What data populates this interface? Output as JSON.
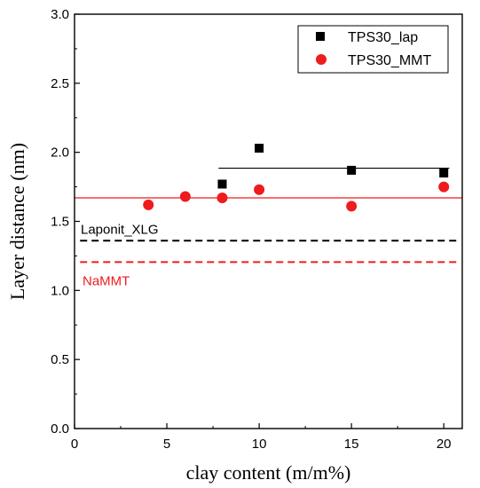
{
  "chart_data": {
    "type": "scatter",
    "xlabel": "clay content (m/m%)",
    "ylabel": "Layer distance (nm)",
    "xlim": [
      0,
      21
    ],
    "ylim": [
      0,
      3.0
    ],
    "xticks": [
      "0",
      "5",
      "10",
      "15",
      "20"
    ],
    "yticks": [
      "0.0",
      "0.5",
      "1.0",
      "1.5",
      "2.0",
      "2.5",
      "3.0"
    ],
    "xtick_values": [
      0,
      5,
      10,
      15,
      20
    ],
    "ytick_values": [
      0,
      0.5,
      1.0,
      1.5,
      2.0,
      2.5,
      3.0
    ],
    "legend_position": "top-right",
    "series": [
      {
        "name": "TPS30_lap",
        "marker": "square",
        "color": "#000000",
        "points": [
          {
            "x": 8,
            "y": 1.77
          },
          {
            "x": 10,
            "y": 2.03
          },
          {
            "x": 15,
            "y": 1.87
          },
          {
            "x": 20,
            "y": 1.85
          }
        ],
        "fit_line": {
          "x_start": 7.8,
          "x_end": 20.3,
          "y": 1.885
        }
      },
      {
        "name": "TPS30_MMT",
        "marker": "circle",
        "color": "#ee1c1c",
        "points": [
          {
            "x": 4,
            "y": 1.62
          },
          {
            "x": 6,
            "y": 1.68
          },
          {
            "x": 8,
            "y": 1.67
          },
          {
            "x": 10,
            "y": 1.73
          },
          {
            "x": 15,
            "y": 1.61
          },
          {
            "x": 20,
            "y": 1.75
          }
        ],
        "fit_line": {
          "x_start": 0,
          "x_end": 21,
          "y": 1.67
        }
      }
    ],
    "reference_lines": [
      {
        "label": "Laponit_XLG",
        "y": 1.36,
        "color": "#000000",
        "dashed": true,
        "x_start": 0.3,
        "x_end": 20.7
      },
      {
        "label": "NaMMT",
        "y": 1.205,
        "color": "#ee1c1c",
        "dashed": true,
        "x_start": 0.3,
        "x_end": 20.7
      }
    ]
  }
}
